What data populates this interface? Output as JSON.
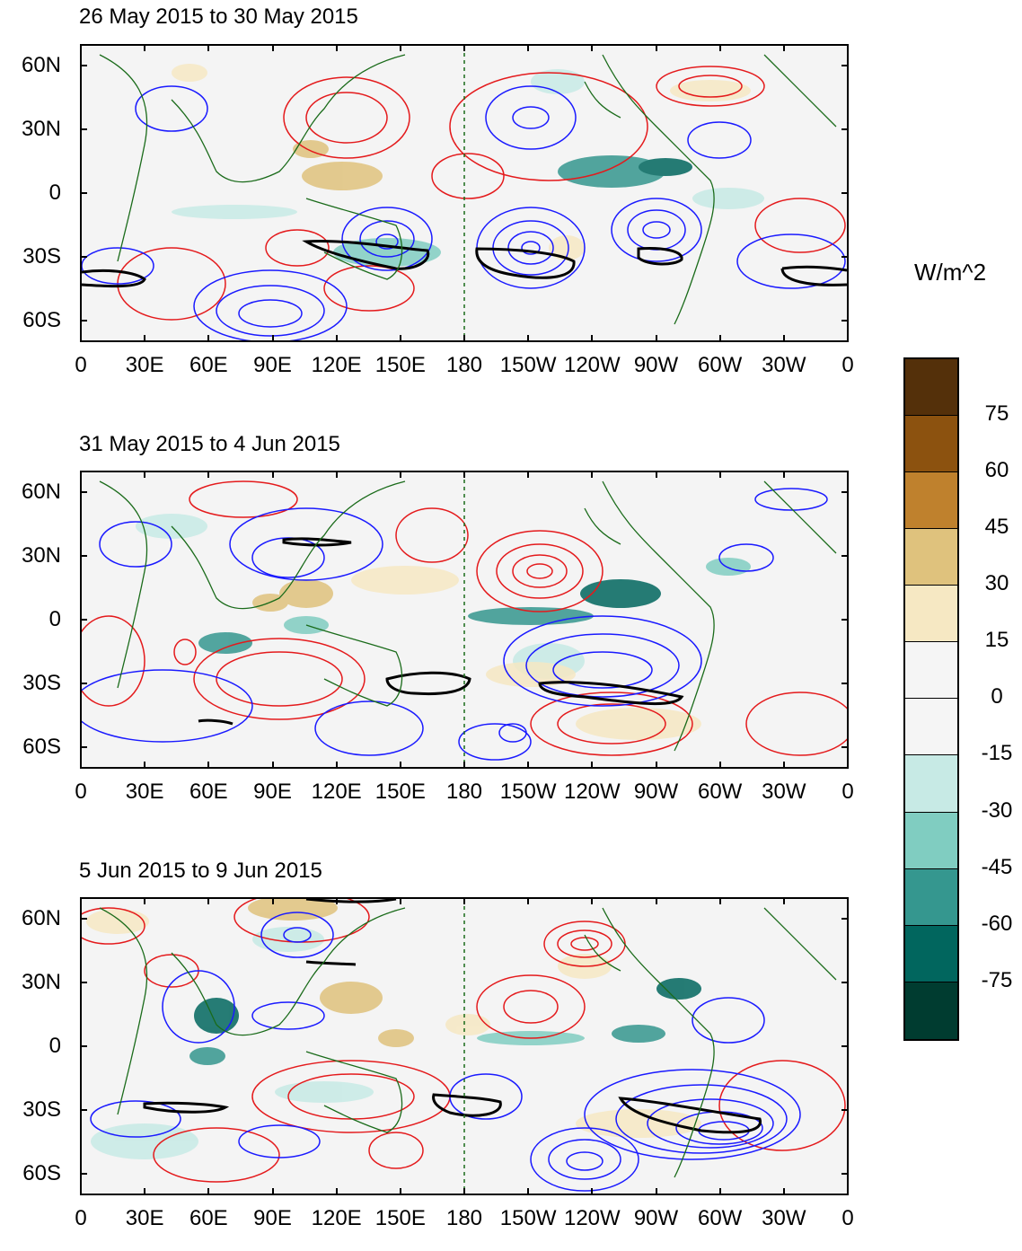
{
  "figure": {
    "units": "W/m^2",
    "panels": [
      {
        "title": "26 May 2015 to 30 May 2015"
      },
      {
        "title": "31 May 2015 to 4 Jun 2015"
      },
      {
        "title": "5 Jun 2015 to 9 Jun 2015"
      }
    ],
    "lat_labels": [
      "60N",
      "30N",
      "0",
      "30S",
      "60S"
    ],
    "lon_labels": [
      "0",
      "30E",
      "60E",
      "90E",
      "120E",
      "150E",
      "180",
      "150W",
      "120W",
      "90W",
      "60W",
      "30W",
      "0"
    ]
  },
  "colorbar": {
    "labels": [
      "75",
      "60",
      "45",
      "30",
      "15",
      "0",
      "-15",
      "-30",
      "-45",
      "-60",
      "-75"
    ],
    "colors": [
      "#54300a",
      "#8c520f",
      "#bf812d",
      "#dfc27d",
      "#f6e8c3",
      "#f5f5f5",
      "#f5f5f5",
      "#c7eae5",
      "#80cdc1",
      "#35978f",
      "#01665e",
      "#003c30"
    ]
  },
  "styles": {
    "positive_contour": "#e41a1c",
    "negative_contour": "#1a1aff",
    "coastline": "#1a6b1a",
    "jet_contour": "#000000"
  }
}
